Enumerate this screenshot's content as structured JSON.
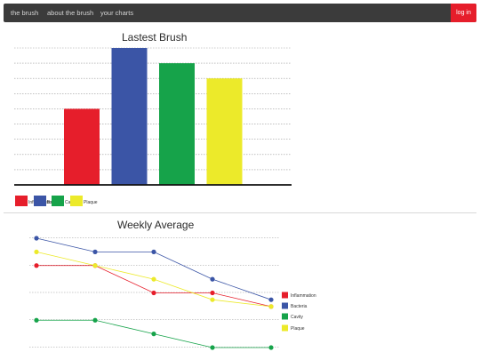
{
  "nav": {
    "items": [
      "the brush",
      "about the brush",
      "your charts"
    ],
    "login_label": "log in"
  },
  "colors": {
    "inflammation": "#e61e2b",
    "bacteria": "#3b55a6",
    "cavity": "#16a34a",
    "plaque": "#ecea2a",
    "navbar": "#3b3b3b"
  },
  "chart_data": [
    {
      "type": "bar",
      "title": "Lastest Brush",
      "categories": [
        "Inflammation",
        "Bacteria",
        "Cavity",
        "Plaque"
      ],
      "values": [
        5,
        9,
        8,
        7
      ],
      "ylim": [
        0,
        9
      ],
      "grid": true,
      "legend": "bottom-left",
      "legend_entries": [
        {
          "label": "Inflammation",
          "color": "#e61e2b"
        },
        {
          "label": "Bacteria",
          "color": "#3b55a6"
        },
        {
          "label": "Cavity",
          "color": "#16a34a"
        },
        {
          "label": "Plaque",
          "color": "#ecea2a"
        }
      ]
    },
    {
      "type": "line",
      "title": "Weekly Average",
      "x": [
        1,
        2,
        3,
        4,
        5
      ],
      "ylim": [
        0,
        8
      ],
      "grid": true,
      "legend": "right",
      "series": [
        {
          "name": "Inflammation",
          "color": "#e61e2b",
          "values": [
            6,
            6,
            4,
            4,
            3
          ]
        },
        {
          "name": "Bacteria",
          "color": "#3b55a6",
          "values": [
            8,
            7,
            7,
            5,
            3.5
          ]
        },
        {
          "name": "Cavity",
          "color": "#16a34a",
          "values": [
            2,
            2,
            1,
            0,
            0
          ]
        },
        {
          "name": "Plaque",
          "color": "#ecea2a",
          "values": [
            7,
            6,
            5,
            3.5,
            3
          ]
        }
      ]
    }
  ]
}
